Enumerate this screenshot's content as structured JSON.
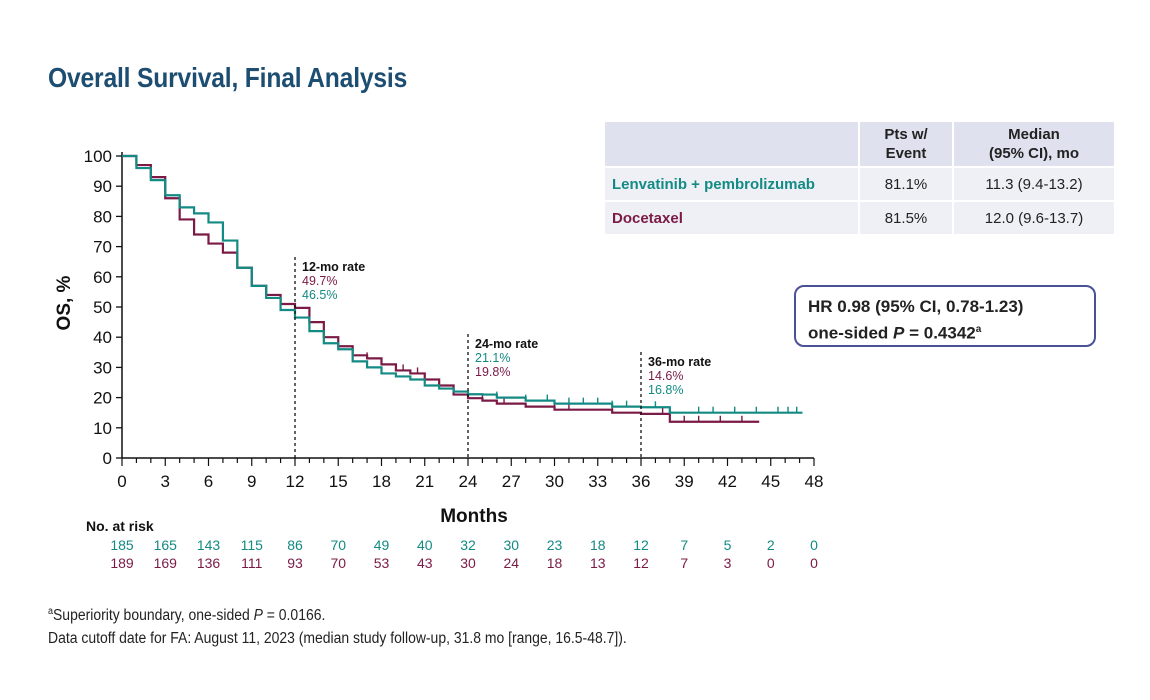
{
  "title": "Overall Survival, Final Analysis",
  "colors": {
    "lenvatinib": "#138a83",
    "docetaxel": "#7a1a45",
    "title": "#1d4e72",
    "box_border": "#4b5196"
  },
  "table": {
    "headers": [
      "",
      "Pts w/\nEvent",
      "Median\n(95% CI), mo"
    ],
    "rows": [
      {
        "arm": "Lenvatinib + pembrolizumab",
        "event": "81.1%",
        "median": "11.3 (9.4-13.2)",
        "color": "#138a83"
      },
      {
        "arm": "Docetaxel",
        "event": "81.5%",
        "median": "12.0 (9.6-13.7)",
        "color": "#7a1a45"
      }
    ]
  },
  "hr_box": {
    "line1": "HR 0.98 (95% CI, 0.78-1.23)",
    "line2_prefix": "one-sided ",
    "line2_p": "P",
    "line2_value": " = 0.4342",
    "line2_sup": "a"
  },
  "footnote": {
    "sup": "a",
    "line1_prefix": "Superiority boundary, one-sided ",
    "line1_p": "P",
    "line1_suffix": " = 0.0166.",
    "line2": "Data cutoff date for FA: August 11, 2023 (median study follow-up, 31.8 mo [range, 16.5-48.7])."
  },
  "chart_data": {
    "type": "line",
    "title": "Overall Survival, Final Analysis",
    "xlabel": "Months",
    "ylabel": "OS, %",
    "xlim": [
      0,
      48
    ],
    "ylim": [
      0,
      100
    ],
    "xticks": [
      0,
      3,
      6,
      9,
      12,
      15,
      18,
      21,
      24,
      27,
      30,
      33,
      36,
      39,
      42,
      45,
      48
    ],
    "yticks": [
      0,
      10,
      20,
      30,
      40,
      50,
      60,
      70,
      80,
      90,
      100
    ],
    "series": [
      {
        "name": "Lenvatinib + pembrolizumab",
        "color": "#138a83",
        "x": [
          0,
          1,
          2,
          3,
          4,
          5,
          6,
          7,
          8,
          9,
          10,
          11,
          12,
          13,
          14,
          15,
          16,
          17,
          18,
          19,
          20,
          21,
          22,
          23,
          24,
          25,
          26,
          28,
          30,
          32,
          34,
          35,
          36,
          38,
          40,
          42,
          44,
          46,
          47.2
        ],
        "y": [
          100,
          96,
          92,
          87,
          83,
          81,
          78,
          72,
          63,
          57,
          53,
          49,
          46.5,
          42,
          38,
          36,
          32,
          30,
          28,
          27,
          26,
          24,
          23,
          22,
          21.1,
          21,
          20,
          19,
          18,
          18,
          17,
          17,
          16.8,
          15,
          15,
          15,
          15,
          15,
          15
        ],
        "censor_x": [
          26,
          28,
          29.5,
          31,
          32,
          33,
          34,
          35,
          37,
          38,
          40,
          41,
          42.5,
          44,
          45.5,
          46.2,
          46.8
        ]
      },
      {
        "name": "Docetaxel",
        "color": "#7a1a45",
        "x": [
          0,
          1,
          2,
          3,
          4,
          5,
          6,
          7,
          8,
          9,
          10,
          11,
          12,
          13,
          14,
          15,
          16,
          17,
          18,
          19,
          20,
          21,
          22,
          23,
          24,
          25,
          26,
          28,
          30,
          32,
          34,
          36,
          38,
          40,
          42,
          44.2
        ],
        "y": [
          100,
          97,
          93,
          86,
          79,
          74,
          71,
          68,
          63,
          57,
          54,
          51,
          49.7,
          45,
          40,
          37,
          34,
          33,
          31,
          29,
          28,
          26,
          24,
          21,
          19.8,
          19,
          18,
          17,
          16,
          16,
          15,
          14.6,
          12,
          12,
          12,
          12
        ],
        "censor_x": [
          14,
          15,
          17,
          19,
          19.5,
          20.5,
          21,
          22,
          25,
          26.5,
          30,
          31,
          34,
          37.5,
          39,
          40,
          41.5,
          43
        ]
      }
    ],
    "annotations": [
      {
        "x": 12,
        "label": "12-mo rate",
        "values": [
          {
            "text": "49.7%",
            "series": "Docetaxel"
          },
          {
            "text": "46.5%",
            "series": "Lenvatinib + pembrolizumab"
          }
        ]
      },
      {
        "x": 24,
        "label": "24-mo rate",
        "values": [
          {
            "text": "21.1%",
            "series": "Lenvatinib + pembrolizumab"
          },
          {
            "text": "19.8%",
            "series": "Docetaxel"
          }
        ]
      },
      {
        "x": 36,
        "label": "36-mo rate",
        "values": [
          {
            "text": "14.6%",
            "series": "Docetaxel"
          },
          {
            "text": "16.8%",
            "series": "Lenvatinib + pembrolizumab"
          }
        ]
      }
    ],
    "risk_table": {
      "label": "No. at risk",
      "months": [
        0,
        3,
        6,
        9,
        12,
        15,
        18,
        21,
        24,
        27,
        30,
        33,
        36,
        39,
        42,
        45,
        48
      ],
      "rows": [
        {
          "series": "Lenvatinib + pembrolizumab",
          "values": [
            185,
            165,
            143,
            115,
            86,
            70,
            49,
            40,
            32,
            30,
            23,
            18,
            12,
            7,
            5,
            2,
            0
          ]
        },
        {
          "series": "Docetaxel",
          "values": [
            189,
            169,
            136,
            111,
            93,
            70,
            53,
            43,
            30,
            24,
            18,
            13,
            12,
            7,
            3,
            0,
            0
          ]
        }
      ]
    }
  }
}
